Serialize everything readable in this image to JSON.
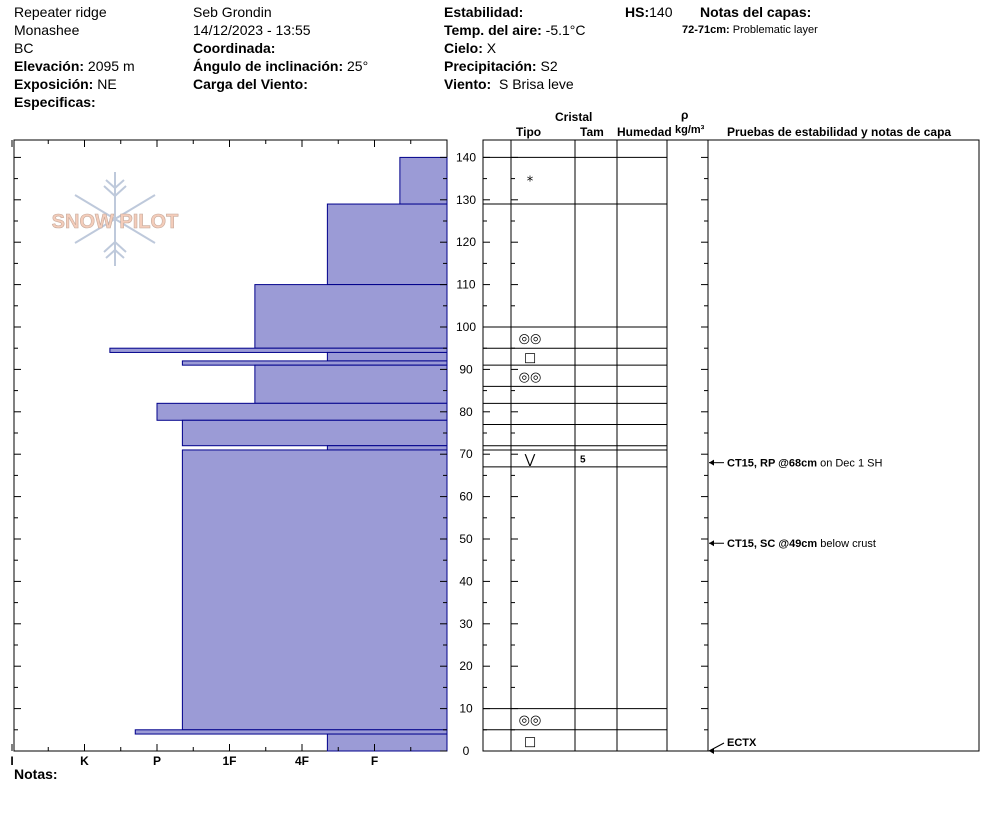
{
  "header": {
    "location": "Repeater ridge",
    "range": "Monashee",
    "region": "BC",
    "elevation_label": "Elevación:",
    "elevation_value": "2095 m",
    "aspect_label": "Exposición:",
    "aspect_value": "NE",
    "specifics_label": "Especificas:",
    "observer": "Seb Grondin",
    "datetime": "14/12/2023 - 13:55",
    "coord_label": "Coordinada:",
    "slope_label": "Ángulo de inclinación:",
    "slope_value": "25°",
    "wind_load_label": "Carga del Viento:",
    "stability_label": "Estabilidad:",
    "air_temp_label": "Temp. del aire:",
    "air_temp_value": "-5.1°C",
    "sky_label": "Cielo:",
    "sky_value": "X",
    "precip_label": "Precipitación:",
    "precip_value": "S2",
    "wind_label": "Viento:",
    "wind_value": "S Brisa leve",
    "hs_label": "HS:",
    "hs_value": "140",
    "layer_notes_label": "Notas del capas:",
    "layer_note_range": "72-71cm:",
    "layer_note_text": "Problematic layer"
  },
  "columns": {
    "crystal": "Cristal",
    "type": "Tipo",
    "size": "Tam",
    "moisture": "Humedad",
    "rho": "ρ",
    "density_unit": "kg/m³",
    "tests": "Pruebas de estabilidad y notas de capa"
  },
  "notes_label": "Notas:",
  "logo_text": "SNOW PILOT",
  "colors": {
    "hardness_fill": "#9b9bd6",
    "hardness_stroke": "#00008b"
  },
  "chart_data": {
    "type": "snow-profile",
    "y_range": [
      0,
      145
    ],
    "y_ticks": [
      0,
      10,
      20,
      30,
      40,
      50,
      60,
      70,
      80,
      90,
      100,
      110,
      120,
      130,
      140
    ],
    "hardness_scale": [
      "I",
      "K",
      "P",
      "1F",
      "4F",
      "F"
    ],
    "hardness_values": {
      "I": 6,
      "K": 5,
      "P": 4,
      "1F": 3,
      "4F": 2,
      "F": 1
    },
    "hardness_layers": [
      {
        "top": 140,
        "bottom": 129,
        "hardness": 0.65
      },
      {
        "top": 129,
        "bottom": 110,
        "hardness": 1.65
      },
      {
        "top": 110,
        "bottom": 95,
        "hardness": 2.65
      },
      {
        "top": 95,
        "bottom": 94,
        "hardness": 4.65
      },
      {
        "top": 94,
        "bottom": 92,
        "hardness": 1.65
      },
      {
        "top": 92,
        "bottom": 91,
        "hardness": 3.65
      },
      {
        "top": 91,
        "bottom": 82,
        "hardness": 2.65
      },
      {
        "top": 82,
        "bottom": 78,
        "hardness": 4.0
      },
      {
        "top": 78,
        "bottom": 72,
        "hardness": 3.65
      },
      {
        "top": 72,
        "bottom": 71,
        "hardness": 1.65
      },
      {
        "top": 71,
        "bottom": 5,
        "hardness": 3.65
      },
      {
        "top": 5,
        "bottom": 4,
        "hardness": 4.3
      },
      {
        "top": 4,
        "bottom": 0,
        "hardness": 1.65
      }
    ],
    "layer_boundaries": [
      140,
      129,
      100,
      95,
      91,
      86,
      82,
      77,
      72,
      71,
      67,
      10,
      5,
      0
    ],
    "grain_rows": [
      {
        "top": 140,
        "bottom": 129,
        "symbol": "*",
        "size": ""
      },
      {
        "top": 100,
        "bottom": 95,
        "symbol": "◎◎",
        "size": ""
      },
      {
        "top": 95,
        "bottom": 91,
        "symbol": "□",
        "size": ""
      },
      {
        "top": 91,
        "bottom": 86,
        "symbol": "◎◎",
        "size": ""
      },
      {
        "top": 71,
        "bottom": 67,
        "symbol": "⋁",
        "size": "5"
      },
      {
        "top": 10,
        "bottom": 5,
        "symbol": "◎◎",
        "size": ""
      },
      {
        "top": 5,
        "bottom": 0,
        "symbol": "□",
        "size": ""
      }
    ],
    "stability_tests": [
      {
        "height": 68,
        "code": "CT15, RP @68cm",
        "comment": "on Dec 1 SH"
      },
      {
        "height": 49,
        "code": "CT15, SC @49cm",
        "comment": "below crust"
      },
      {
        "height": 0,
        "code": "ECTX",
        "comment": ""
      }
    ]
  }
}
